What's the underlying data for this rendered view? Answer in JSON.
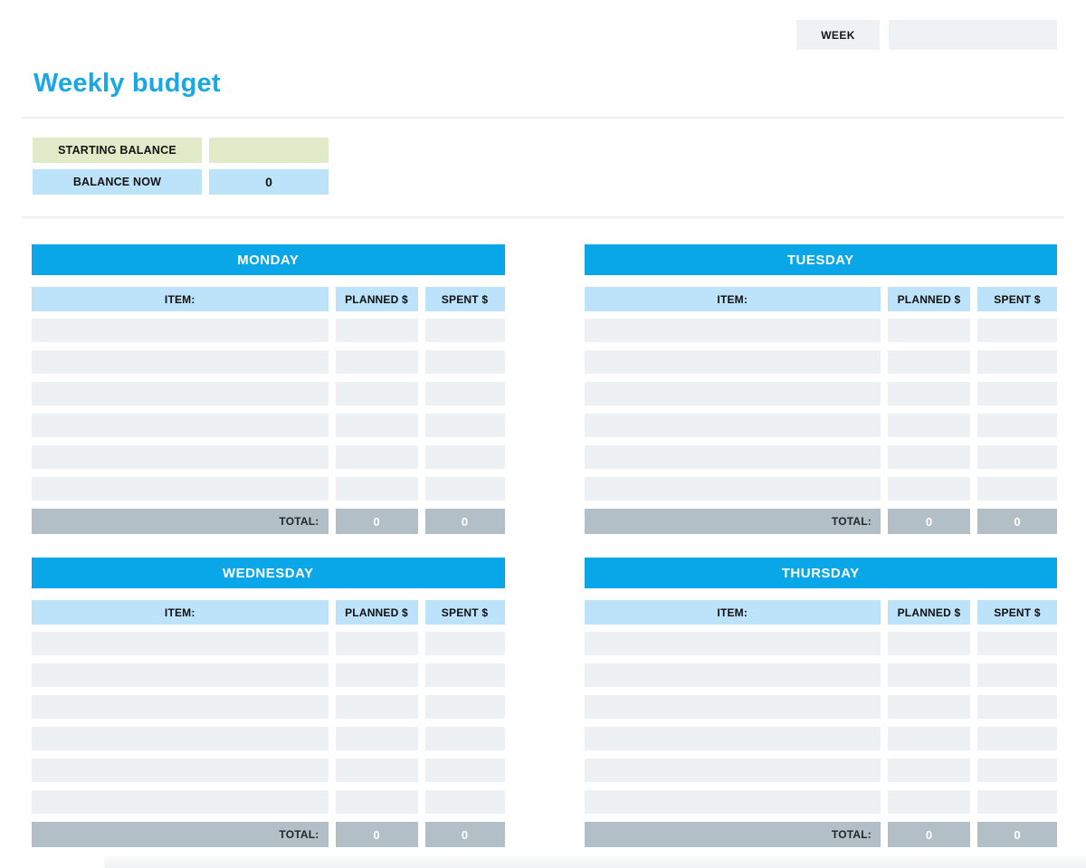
{
  "week": {
    "label": "WEEK",
    "value": ""
  },
  "title": "Weekly budget",
  "balance": {
    "starting": {
      "label": "STARTING BALANCE",
      "value": ""
    },
    "now": {
      "label": "BALANCE NOW",
      "value": "0"
    }
  },
  "tables": [
    {
      "day": "MONDAY",
      "columns": {
        "item": "ITEM:",
        "planned": "PLANNED $",
        "spent": "SPENT $"
      },
      "rows": [
        [
          "",
          "",
          ""
        ],
        [
          "",
          "",
          ""
        ],
        [
          "",
          "",
          ""
        ],
        [
          "",
          "",
          ""
        ],
        [
          "",
          "",
          ""
        ],
        [
          "",
          "",
          ""
        ]
      ],
      "total": {
        "label": "TOTAL:",
        "planned": "0",
        "spent": "0"
      }
    },
    {
      "day": "TUESDAY",
      "columns": {
        "item": "ITEM:",
        "planned": "PLANNED $",
        "spent": "SPENT $"
      },
      "rows": [
        [
          "",
          "",
          ""
        ],
        [
          "",
          "",
          ""
        ],
        [
          "",
          "",
          ""
        ],
        [
          "",
          "",
          ""
        ],
        [
          "",
          "",
          ""
        ],
        [
          "",
          "",
          ""
        ]
      ],
      "total": {
        "label": "TOTAL:",
        "planned": "0",
        "spent": "0"
      }
    },
    {
      "day": "WEDNESDAY",
      "columns": {
        "item": "ITEM:",
        "planned": "PLANNED $",
        "spent": "SPENT $"
      },
      "rows": [
        [
          "",
          "",
          ""
        ],
        [
          "",
          "",
          ""
        ],
        [
          "",
          "",
          ""
        ],
        [
          "",
          "",
          ""
        ],
        [
          "",
          "",
          ""
        ],
        [
          "",
          "",
          ""
        ]
      ],
      "total": {
        "label": "TOTAL:",
        "planned": "0",
        "spent": "0"
      }
    },
    {
      "day": "THURSDAY",
      "columns": {
        "item": "ITEM:",
        "planned": "PLANNED $",
        "spent": "SPENT $"
      },
      "rows": [
        [
          "",
          "",
          ""
        ],
        [
          "",
          "",
          ""
        ],
        [
          "",
          "",
          ""
        ],
        [
          "",
          "",
          ""
        ],
        [
          "",
          "",
          ""
        ],
        [
          "",
          "",
          ""
        ]
      ],
      "total": {
        "label": "TOTAL:",
        "planned": "0",
        "spent": "0"
      }
    }
  ],
  "colors": {
    "accent_blue": "#0aa7e8",
    "title_blue": "#17a8e5",
    "column_header_blue": "#bce3f9",
    "row_gray": "#edf1f4",
    "total_gray": "#b2bfc7",
    "balance_green": "#e1ebc9",
    "week_box_gray": "#eef2f5"
  }
}
